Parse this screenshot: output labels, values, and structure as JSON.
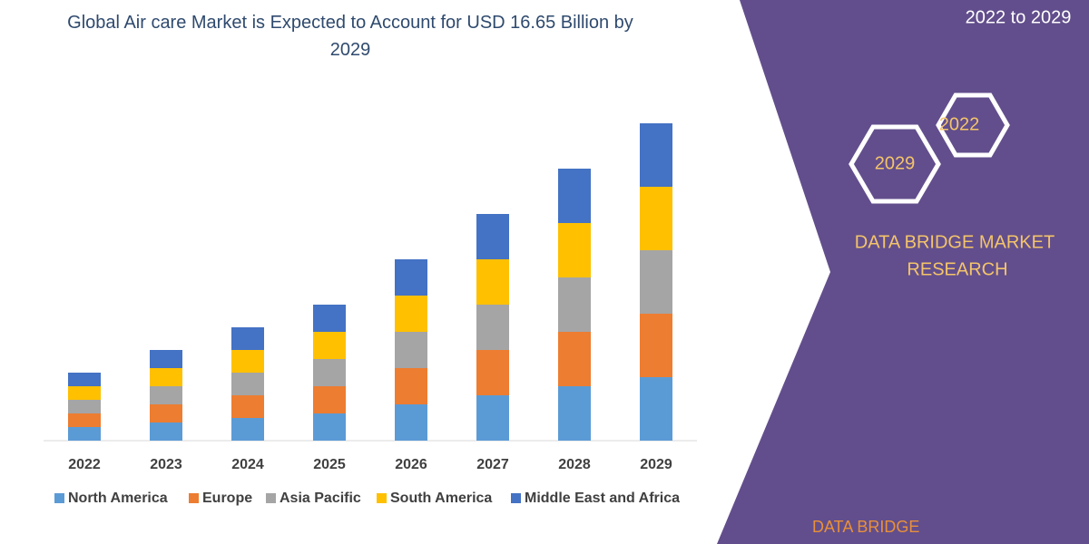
{
  "chart_data": {
    "type": "stacked-bar",
    "title": "Global Air care Market is Expected to Account for USD 16.65 Billion by 2029",
    "categories": [
      "2022",
      "2023",
      "2024",
      "2025",
      "2026",
      "2027",
      "2028",
      "2029"
    ],
    "series": [
      {
        "name": "North America",
        "color": "#5b9bd5",
        "values": [
          15,
          20,
          25,
          30,
          40,
          50,
          60,
          70
        ]
      },
      {
        "name": "Europe",
        "color": "#ed7d31",
        "values": [
          15,
          20,
          25,
          30,
          40,
          50,
          60,
          70
        ]
      },
      {
        "name": "Asia Pacific",
        "color": "#a5a5a5",
        "values": [
          15,
          20,
          25,
          30,
          40,
          50,
          60,
          70
        ]
      },
      {
        "name": "South America",
        "color": "#ffc000",
        "values": [
          15,
          20,
          25,
          30,
          40,
          50,
          60,
          70
        ]
      },
      {
        "name": "Middle East and Africa",
        "color": "#4472c4",
        "values": [
          15,
          20,
          25,
          30,
          40,
          50,
          60,
          70
        ]
      }
    ],
    "ylim": [
      0,
      350
    ]
  },
  "side": {
    "period": "2022 to 2029",
    "hex_top": "2022",
    "hex_bottom": "2029",
    "brand": [
      "DATA BRIDGE MARKET",
      "RESEARCH"
    ],
    "logo": "DATA BRIDGE"
  }
}
